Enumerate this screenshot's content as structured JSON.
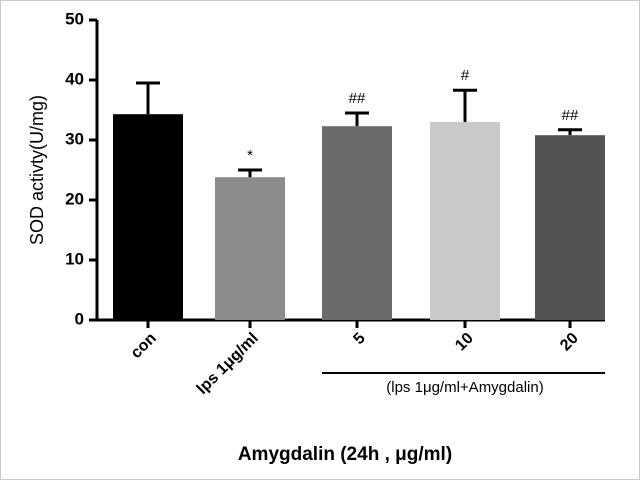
{
  "chart_data": {
    "type": "bar",
    "categories": [
      "con",
      "lps 1μg/ml",
      "5",
      "10",
      "20"
    ],
    "values": [
      34.3,
      23.8,
      32.3,
      33.0,
      30.8
    ],
    "errors": [
      5.2,
      1.2,
      2.2,
      5.3,
      0.9
    ],
    "colors": [
      "#000000",
      "#8c8c8c",
      "#6b6b6b",
      "#c9c9c9",
      "#535353"
    ],
    "annotations": [
      null,
      "*",
      "##",
      "#",
      "##"
    ],
    "group_label": "(lps 1μg/ml+Amygdalin)",
    "xlabel": "Amygdalin (24h , μg/ml)",
    "ylabel": "SOD activty(U/mg)",
    "ylim": [
      0,
      50
    ],
    "yticks": [
      0,
      10,
      20,
      30,
      40,
      50
    ]
  }
}
